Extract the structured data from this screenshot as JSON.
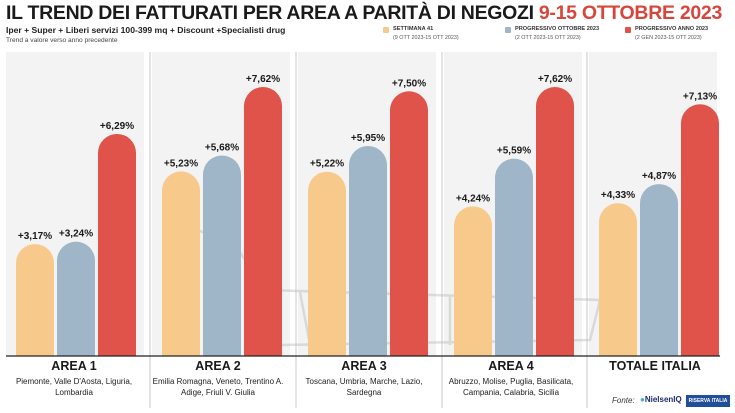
{
  "header": {
    "title_main": "IL TREND DEI FATTURATI PER AREA A PARITÀ DI NEGOZI ",
    "title_dates": "9-15 OTTOBRE 2023",
    "subtitle": "Iper + Super + Liberi servizi 100-399 mq + Discount +Specialisti drug",
    "note": "Trend a valore verso anno precedente"
  },
  "legend": [
    {
      "label": "SETTIMANA 41",
      "sub": "(9 OTT 2023-15 OTT 2023)",
      "color": "#f7c98b"
    },
    {
      "label": "PROGRESSIVO OTTOBRE 2023",
      "sub": "(2 OTT 2023-15 OTT 2023)",
      "color": "#9fb6c8"
    },
    {
      "label": "PROGRESSIVO ANNO 2023",
      "sub": "(2 GEN 2023-15 OTT 2023)",
      "color": "#e0534a"
    }
  ],
  "chart_data": {
    "type": "bar",
    "categories": [
      "AREA 1",
      "AREA 2",
      "AREA 3",
      "AREA 4",
      "TOTALE ITALIA"
    ],
    "category_details": [
      "Piemonte, Valle D'Aosta, Liguria, Lombardia",
      "Emilia Romagna, Veneto, Trentino A. Adige, Friuli V. Giulia",
      "Toscana, Umbria, Marche, Lazio, Sardegna",
      "Abruzzo, Molise, Puglia, Basilicata, Campania, Calabria, Sicilia",
      ""
    ],
    "series": [
      {
        "name": "SETTIMANA 41",
        "values": [
          3.17,
          5.23,
          5.22,
          4.24,
          4.33
        ],
        "labels": [
          "+3,17%",
          "+5,23%",
          "+5,22%",
          "+4,24%",
          "+4,33%"
        ]
      },
      {
        "name": "PROGRESSIVO OTTOBRE 2023",
        "values": [
          3.24,
          5.68,
          5.95,
          5.59,
          4.87
        ],
        "labels": [
          "+3,24%",
          "+5,68%",
          "+5,95%",
          "+5,59%",
          "+4,87%"
        ]
      },
      {
        "name": "PROGRESSIVO ANNO 2023",
        "values": [
          6.29,
          7.62,
          7.5,
          7.62,
          7.13
        ],
        "labels": [
          "+6,29%",
          "+7,62%",
          "+7,50%",
          "+7,62%",
          "+7,13%"
        ]
      }
    ],
    "ylim": [
      0,
      8
    ],
    "grid": false,
    "legend_position": "top-right"
  },
  "footer": {
    "source_label": "Fonte:",
    "logo_nielsen": "NielsenIQ",
    "logo_ri": "RISERVA ITALIA"
  }
}
